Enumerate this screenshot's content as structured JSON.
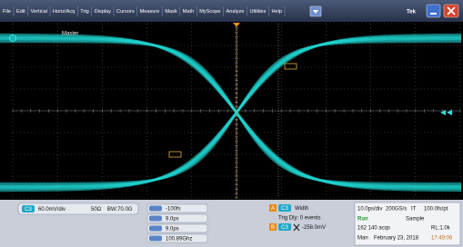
{
  "menu": [
    "File",
    "Edit",
    "Vertical",
    "Horiz/Acq",
    "Trig",
    "Display",
    "Cursors",
    "Measure",
    "Mask",
    "Math",
    "MyScope",
    "Analyze",
    "Utilities",
    "Help"
  ],
  "brand": "Tek",
  "screen": {
    "label": "Master"
  },
  "channel": {
    "badge": "C3",
    "scale": "60.0mV/div",
    "impedance": "50Ω",
    "bandwidth": "BW:70.0G"
  },
  "cursors": [
    "-100fs",
    "9.0ps",
    "9.0ps",
    "100.89Ghz"
  ],
  "trigger": {
    "a": "A",
    "source": "C3",
    "type": "Width",
    "delay": "Trig Dly: 0 events",
    "b": "B",
    "level_source": "C3",
    "level": "-258.0mV"
  },
  "acquisition": {
    "timebase": "10.0ps/div",
    "rate": "200GS/s",
    "mode": "IT",
    "resolution": "100.0fs/pt",
    "state": "Run",
    "acq_mode": "Sample",
    "count": "162 140 acqs",
    "record": "RL:1.0k",
    "trigger_mode": "Man",
    "date": "February 23, 2018",
    "time": "17:49:06"
  }
}
